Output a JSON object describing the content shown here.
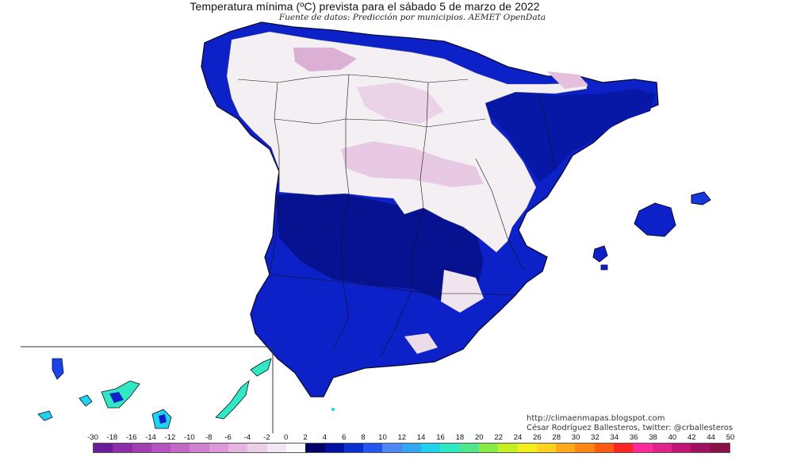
{
  "map": {
    "title": "Temperatura mínima (ºC) prevista para el sábado 5 de marzo de 2022",
    "subtitle": "Fuente de datos: Predicción por municipios. AEMET OpenData",
    "region": "Spain",
    "variable": "minimum temperature",
    "units": "°C"
  },
  "credits": {
    "url": "http://climaenmapas.blogspot.com",
    "author": "César Rodríguez Ballesteros, twitter: @crballesteros"
  },
  "legend": {
    "ticks": [
      "-30",
      "-18",
      "-16",
      "-14",
      "-12",
      "-10",
      "-8",
      "-6",
      "-4",
      "-2",
      "0",
      "2",
      "4",
      "6",
      "8",
      "10",
      "12",
      "14",
      "16",
      "18",
      "20",
      "22",
      "24",
      "26",
      "28",
      "30",
      "32",
      "34",
      "36",
      "38",
      "40",
      "42",
      "44",
      "50"
    ],
    "colors": [
      "#6a1b9a",
      "#8e2ba8",
      "#a23eb4",
      "#b552bf",
      "#c468c8",
      "#d07fd1",
      "#db98db",
      "#e5b4e3",
      "#eccfe9",
      "#f3e6f2",
      "#fafafa",
      "#000066",
      "#0010a0",
      "#0a2fd0",
      "#2256ee",
      "#4f86f5",
      "#2fa7f2",
      "#1fd3ef",
      "#30e8c2",
      "#50e68a",
      "#86ea47",
      "#c4f021",
      "#f4ee1c",
      "#ffd21c",
      "#ffa919",
      "#ff8515",
      "#ff5a12",
      "#ff2424",
      "#ff2a9c",
      "#e0228c",
      "#c21476",
      "#a11060",
      "#8a0f48"
    ],
    "units": "ºC"
  }
}
